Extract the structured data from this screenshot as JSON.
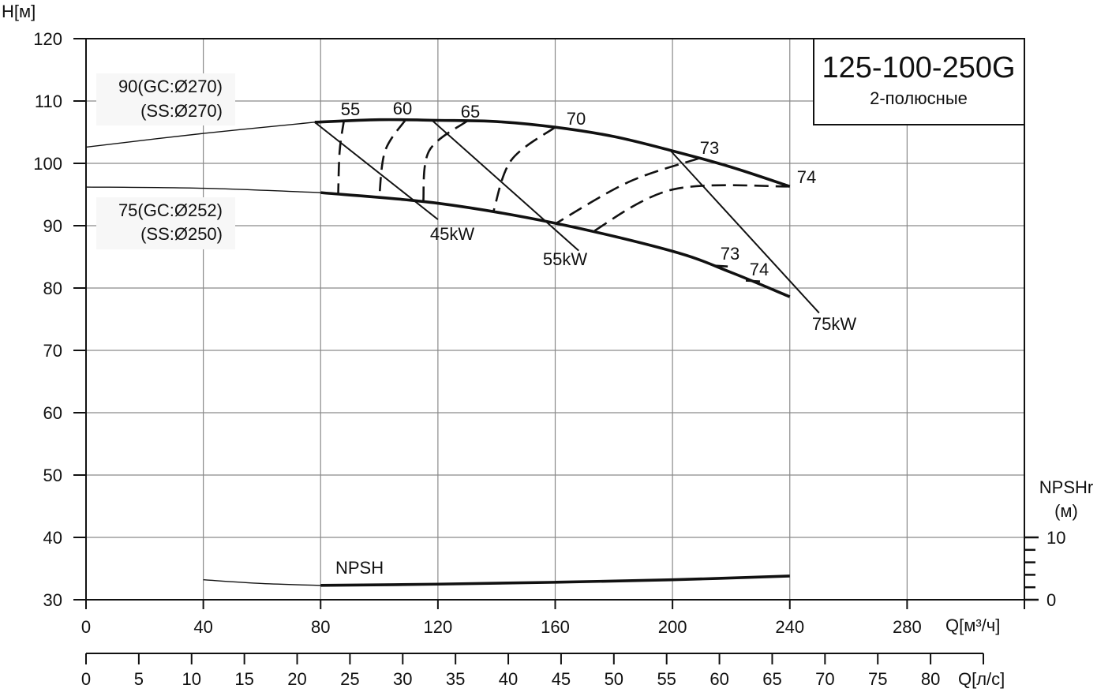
{
  "chart_data": {
    "type": "line",
    "title": "125-100-250G",
    "subtitle": "2-полюсные",
    "ylabel": "H[м]",
    "xlabel": "Q[м³/ч]",
    "x2label": "Q[л/с]",
    "y2label": "NPSHr",
    "y2unit": "(м)",
    "ylim": [
      30,
      120
    ],
    "xlim": [
      0,
      320
    ],
    "yticks": [
      "30",
      "40",
      "50",
      "60",
      "70",
      "80",
      "90",
      "100",
      "110",
      "120"
    ],
    "xticks": [
      "0",
      "40",
      "80",
      "120",
      "160",
      "200",
      "240",
      "280"
    ],
    "x2ticks": [
      "0",
      "5",
      "10",
      "15",
      "20",
      "25",
      "30",
      "35",
      "40",
      "45",
      "50",
      "55",
      "60",
      "65",
      "70",
      "75",
      "80"
    ],
    "y2ticks": [
      "0",
      "10"
    ],
    "y2lim": [
      0,
      10
    ],
    "grid": true,
    "series": [
      {
        "name": "impeller-270",
        "label_line1": "90(GC:Ø270)",
        "label_line2": "(SS:Ø270)",
        "thin": [
          [
            0,
            102.6
          ],
          [
            40,
            104.8
          ],
          [
            78,
            106.6
          ]
        ],
        "thick": [
          [
            78,
            106.6
          ],
          [
            100,
            107.0
          ],
          [
            120,
            106.9
          ],
          [
            140,
            106.7
          ],
          [
            160,
            105.8
          ],
          [
            180,
            104.3
          ],
          [
            200,
            102.0
          ],
          [
            220,
            99.4
          ],
          [
            240,
            96.3
          ]
        ]
      },
      {
        "name": "impeller-252",
        "label_line1": "75(GC:Ø252)",
        "label_line2": "(SS:Ø250)",
        "thin": [
          [
            0,
            96.2
          ],
          [
            40,
            96.0
          ],
          [
            80,
            95.3
          ]
        ],
        "thick": [
          [
            80,
            95.3
          ],
          [
            120,
            93.6
          ],
          [
            160,
            90.4
          ],
          [
            200,
            85.9
          ],
          [
            220,
            82.5
          ],
          [
            240,
            78.6
          ]
        ]
      },
      {
        "name": "NPSH",
        "label": "NPSH",
        "thin": [
          [
            40,
            33.2
          ],
          [
            60,
            32.6
          ],
          [
            80,
            32.3
          ]
        ],
        "thick": [
          [
            80,
            32.3
          ],
          [
            120,
            32.5
          ],
          [
            160,
            32.8
          ],
          [
            200,
            33.2
          ],
          [
            240,
            33.8
          ]
        ]
      }
    ],
    "efficiency": [
      {
        "label": "55",
        "points": [
          [
            88,
            107.0
          ],
          [
            86.5,
            102
          ],
          [
            86,
            95.2
          ]
        ]
      },
      {
        "label": "60",
        "points": [
          [
            109,
            107.0
          ],
          [
            102,
            102
          ],
          [
            100,
            94.5
          ]
        ]
      },
      {
        "label": "65",
        "points": [
          [
            130,
            106.8
          ],
          [
            117,
            102
          ],
          [
            115,
            93.8
          ]
        ]
      },
      {
        "label": "70",
        "points": [
          [
            160,
            105.8
          ],
          [
            145,
            100.5
          ],
          [
            139,
            92.4
          ]
        ]
      },
      {
        "label": "73",
        "points": [
          [
            209,
            100.8
          ],
          [
            185,
            97
          ],
          [
            160,
            90.3
          ]
        ]
      },
      {
        "label": "74",
        "points": [
          [
            240,
            96.3
          ],
          [
            200,
            95.8
          ],
          [
            172,
            88.8
          ]
        ]
      },
      {
        "label": "73",
        "points": [
          [
            214,
            83.6
          ],
          [
            221,
            83.4
          ]
        ]
      },
      {
        "label": "74",
        "points": [
          [
            225,
            81.2
          ],
          [
            232,
            81.0
          ]
        ]
      }
    ],
    "power": [
      {
        "label": "45kW",
        "points": [
          [
            78,
            106.6
          ],
          [
            120,
            91.0
          ]
        ]
      },
      {
        "label": "55kW",
        "points": [
          [
            118,
            106.9
          ],
          [
            168,
            86.0
          ]
        ]
      },
      {
        "label": "75kW",
        "points": [
          [
            199,
            102.2
          ],
          [
            250,
            76.0
          ]
        ]
      }
    ]
  }
}
